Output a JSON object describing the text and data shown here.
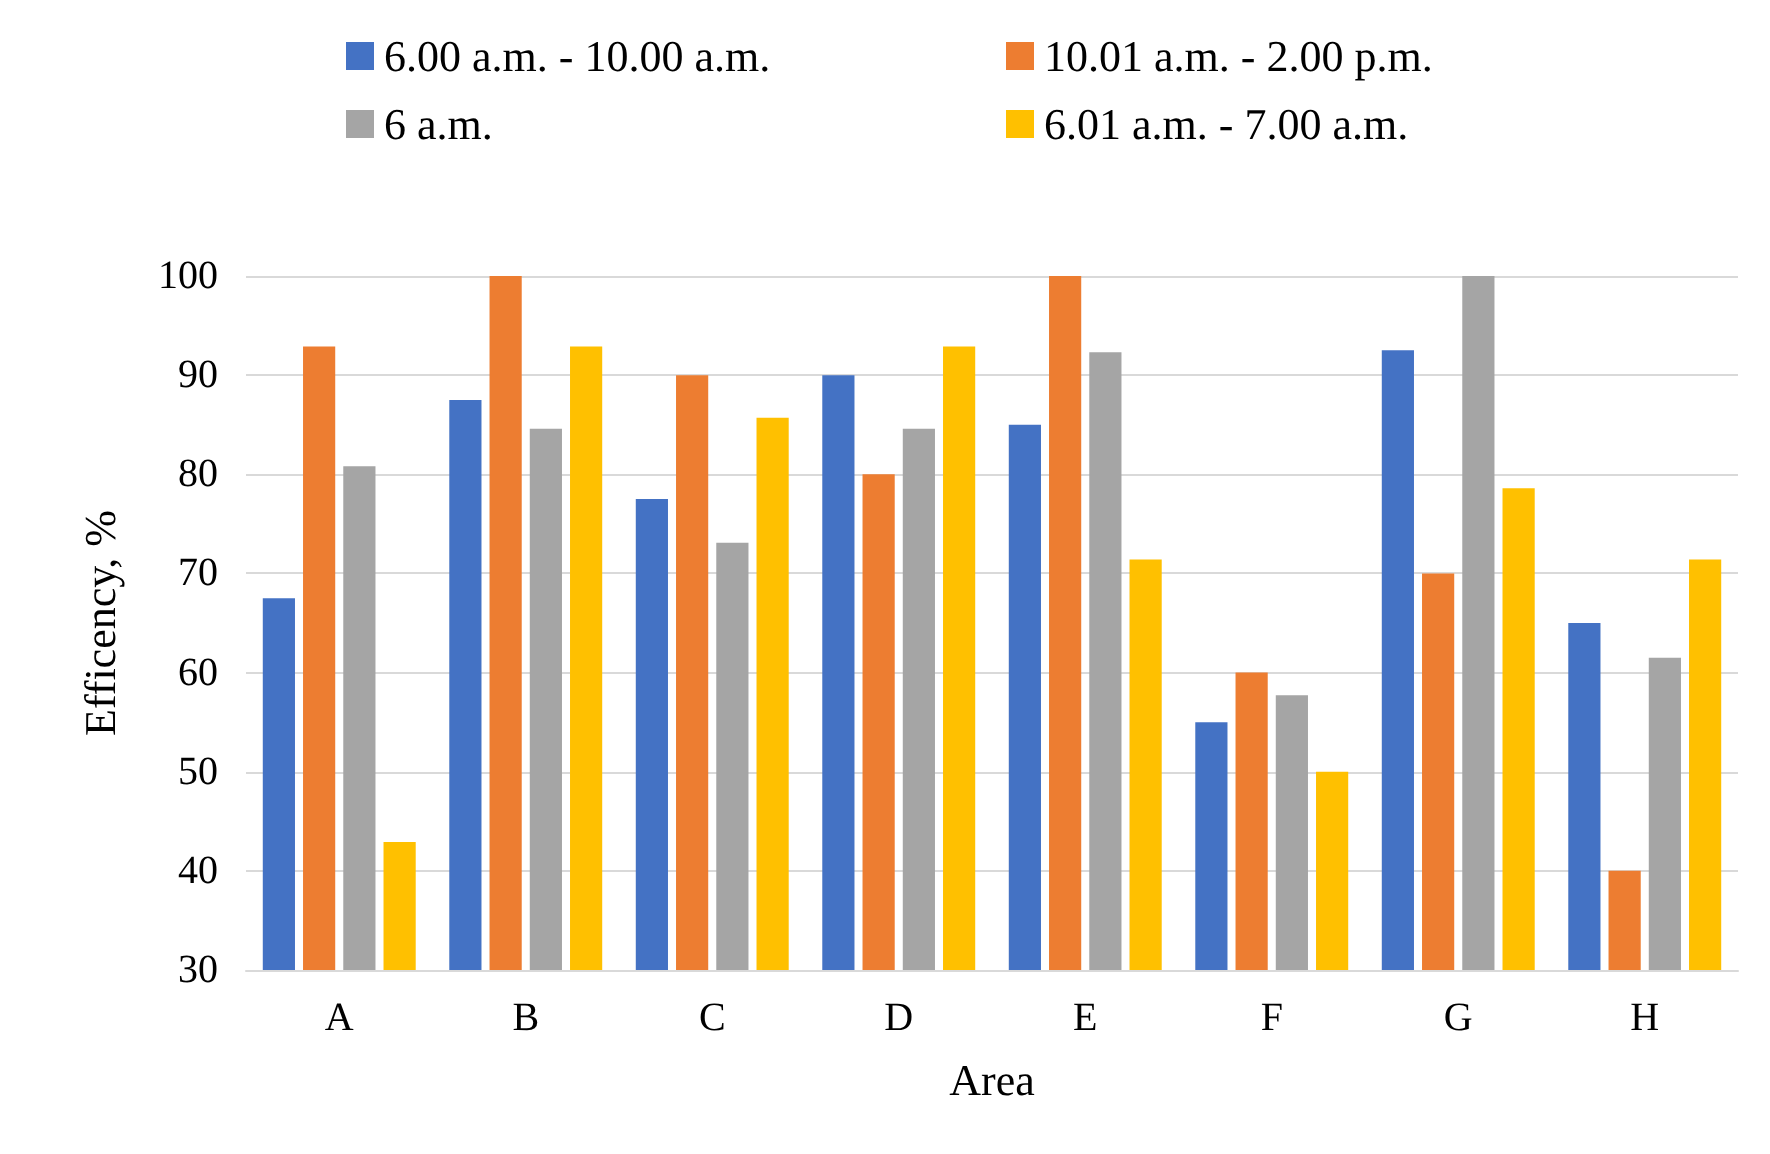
{
  "chart_data": {
    "type": "bar",
    "xlabel": "Area",
    "ylabel": "Efficency, %",
    "categories": [
      "A",
      "B",
      "C",
      "D",
      "E",
      "F",
      "G",
      "H"
    ],
    "series": [
      {
        "name": "6.00 a.m. - 10.00 a.m.",
        "color": "#4472c4",
        "values": [
          67.5,
          87.5,
          77.5,
          90,
          85,
          55,
          92.5,
          65
        ]
      },
      {
        "name": "10.01 a.m. - 2.00 p.m.",
        "color": "#ed7d31",
        "values": [
          92.9,
          100,
          90,
          80,
          100,
          60,
          70,
          40
        ]
      },
      {
        "name": "6 a.m.",
        "color": "#a5a5a5",
        "values": [
          80.8,
          84.6,
          73.1,
          84.6,
          92.3,
          57.7,
          100,
          61.5
        ]
      },
      {
        "name": "6.01 a.m. - 7.00 a.m.",
        "color": "#ffc000",
        "values": [
          42.9,
          92.9,
          85.7,
          92.9,
          71.4,
          50,
          78.6,
          71.4
        ]
      }
    ],
    "ylim": [
      30,
      100
    ],
    "yticks": [
      30,
      40,
      50,
      60,
      70,
      80,
      90,
      100
    ],
    "grid": "y",
    "legend": "top"
  }
}
